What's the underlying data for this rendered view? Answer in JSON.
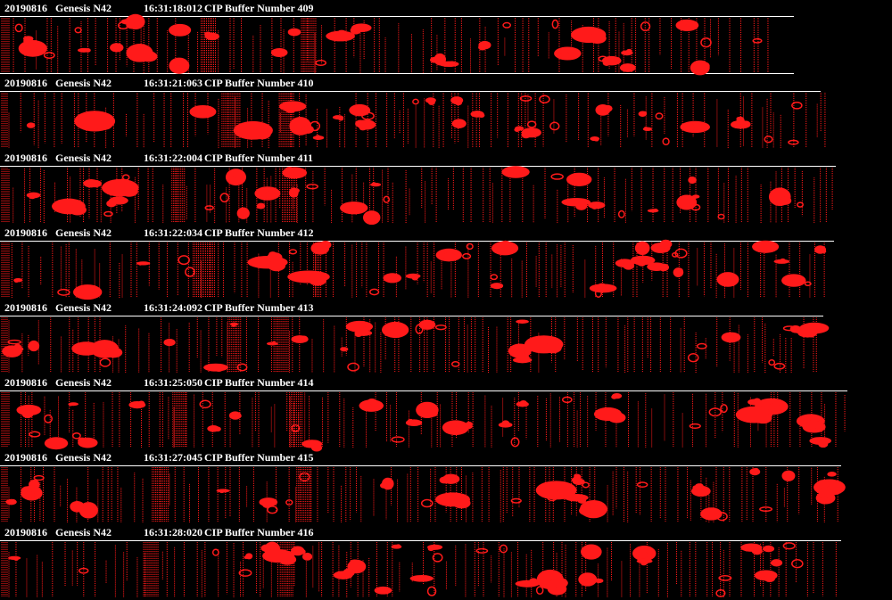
{
  "buffers": [
    {
      "date": "20190816",
      "aircraft": "Genesis N42",
      "time": "16:31:18:012",
      "label": "CIP Buffer Number 409"
    },
    {
      "date": "20190816",
      "aircraft": "Genesis N42",
      "time": "16:31:21:063",
      "label": "CIP Buffer Number 410"
    },
    {
      "date": "20190816",
      "aircraft": "Genesis N42",
      "time": "16:31:22:004",
      "label": "CIP Buffer Number 411"
    },
    {
      "date": "20190816",
      "aircraft": "Genesis N42",
      "time": "16:31:22:034",
      "label": "CIP Buffer Number 412"
    },
    {
      "date": "20190816",
      "aircraft": "Genesis N42",
      "time": "16:31:24:092",
      "label": "CIP Buffer Number 413"
    },
    {
      "date": "20190816",
      "aircraft": "Genesis N42",
      "time": "16:31:25:050",
      "label": "CIP Buffer Number 414"
    },
    {
      "date": "20190816",
      "aircraft": "Genesis N42",
      "time": "16:31:27:045",
      "label": "CIP Buffer Number 415"
    },
    {
      "date": "20190816",
      "aircraft": "Genesis N42",
      "time": "16:31:28:020",
      "label": "CIP Buffer Number 416"
    }
  ]
}
